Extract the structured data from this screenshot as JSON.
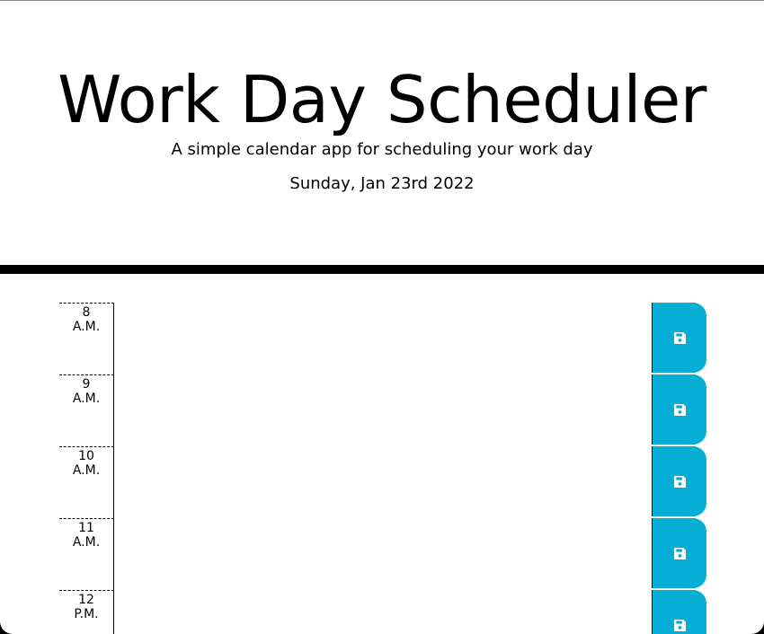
{
  "header": {
    "title": "Work Day Scheduler",
    "subtitle": "A simple calendar app for scheduling your work day",
    "current_day": "Sunday, Jan 23rd 2022"
  },
  "colors": {
    "save_button": "#06aed5",
    "divider": "#000000",
    "background": "#ffffff"
  },
  "save_icon": "floppy-disk-icon",
  "time_blocks": [
    {
      "hour": "8",
      "period": "A.M.",
      "description": ""
    },
    {
      "hour": "9",
      "period": "A.M.",
      "description": ""
    },
    {
      "hour": "10",
      "period": "A.M.",
      "description": ""
    },
    {
      "hour": "11",
      "period": "A.M.",
      "description": ""
    },
    {
      "hour": "12",
      "period": "P.M.",
      "description": ""
    }
  ]
}
